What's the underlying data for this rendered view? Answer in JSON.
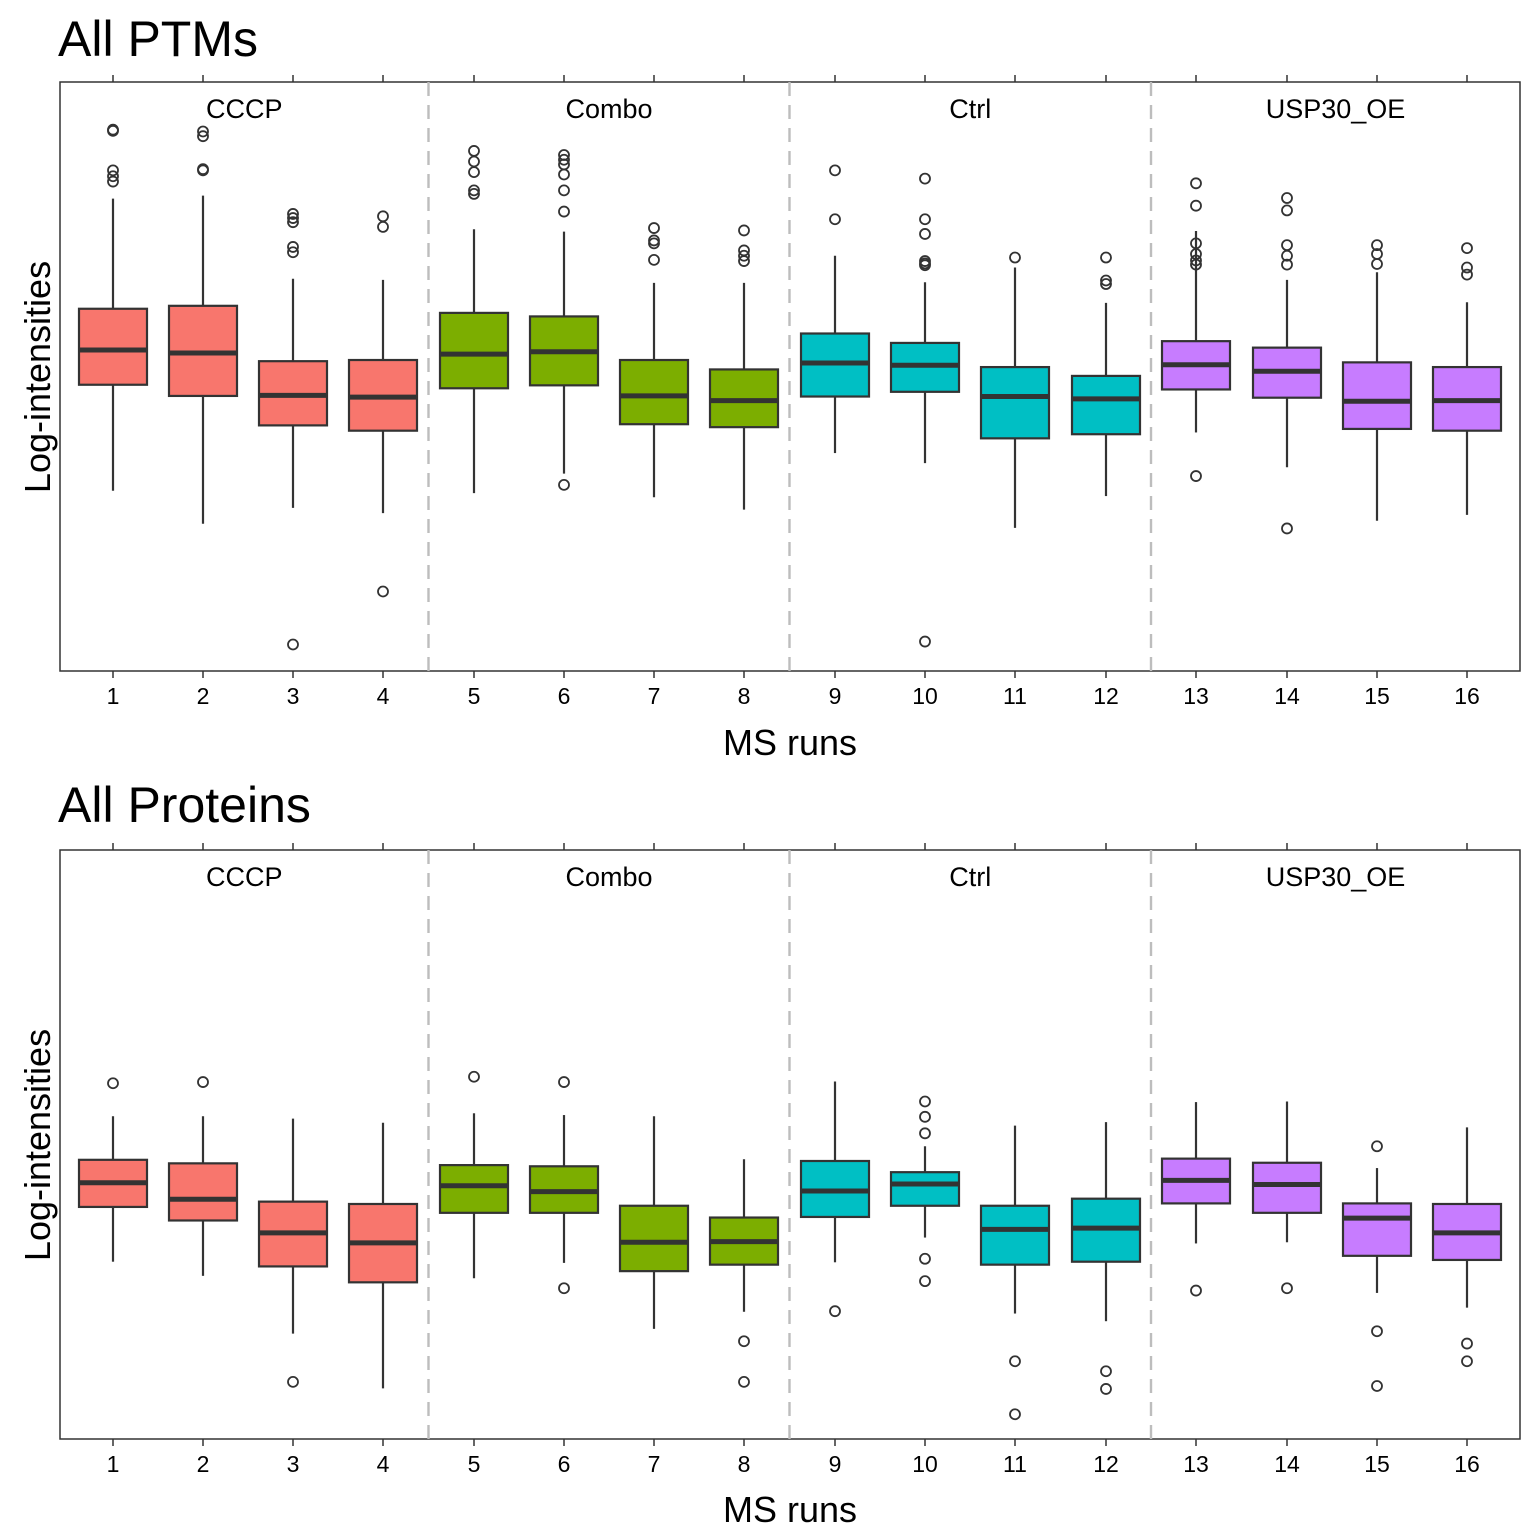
{
  "chart_data": [
    {
      "type": "box",
      "title": "All PTMs",
      "xlabel": "MS runs",
      "ylabel": "Log-intensities",
      "ylim": [
        0,
        100
      ],
      "groups": [
        {
          "name": "CCCP",
          "runs": [
            1,
            2,
            3,
            4
          ],
          "color": "#F8766D"
        },
        {
          "name": "Combo",
          "runs": [
            5,
            6,
            7,
            8
          ],
          "color": "#7CAE00"
        },
        {
          "name": "Ctrl",
          "runs": [
            9,
            10,
            11,
            12
          ],
          "color": "#00BFC4"
        },
        {
          "name": "USP30_OE",
          "runs": [
            13,
            14,
            15,
            16
          ],
          "color": "#C77CFF"
        }
      ],
      "boxes": [
        {
          "run": "1",
          "lower_whisker": 30.6,
          "q1": 48.6,
          "median": 54.5,
          "q3": 61.5,
          "upper_whisker": 80.2,
          "outliers": [
            83.1,
            84.0,
            85.0,
            91.7,
            91.9
          ]
        },
        {
          "run": "2",
          "lower_whisker": 25.0,
          "q1": 46.7,
          "median": 54.0,
          "q3": 62.0,
          "upper_whisker": 80.7,
          "outliers": [
            85.0,
            85.2,
            90.8,
            91.6
          ]
        },
        {
          "run": "3",
          "lower_whisker": 27.7,
          "q1": 41.7,
          "median": 46.8,
          "q3": 52.6,
          "upper_whisker": 66.6,
          "outliers": [
            4.5,
            71.1,
            72.0,
            76.2,
            76.9,
            77.6
          ]
        },
        {
          "run": "4",
          "lower_whisker": 26.8,
          "q1": 40.8,
          "median": 46.5,
          "q3": 52.8,
          "upper_whisker": 66.4,
          "outliers": [
            13.5,
            75.4,
            77.2
          ]
        },
        {
          "run": "5",
          "lower_whisker": 30.2,
          "q1": 48.0,
          "median": 53.8,
          "q3": 60.8,
          "upper_whisker": 75.0,
          "outliers": [
            81.0,
            81.6,
            84.7,
            86.5,
            88.3
          ]
        },
        {
          "run": "6",
          "lower_whisker": 33.5,
          "q1": 48.5,
          "median": 54.2,
          "q3": 60.2,
          "upper_whisker": 74.6,
          "outliers": [
            31.6,
            78.0,
            81.6,
            84.3,
            86.0,
            86.8,
            87.6
          ]
        },
        {
          "run": "7",
          "lower_whisker": 29.5,
          "q1": 41.9,
          "median": 46.7,
          "q3": 52.8,
          "upper_whisker": 65.9,
          "outliers": [
            69.8,
            72.6,
            73.1,
            75.2
          ]
        },
        {
          "run": "8",
          "lower_whisker": 27.4,
          "q1": 41.4,
          "median": 45.9,
          "q3": 51.2,
          "upper_whisker": 65.9,
          "outliers": [
            69.6,
            70.5,
            71.4,
            74.8
          ]
        },
        {
          "run": "9",
          "lower_whisker": 37.0,
          "q1": 46.6,
          "median": 52.3,
          "q3": 57.3,
          "upper_whisker": 70.5,
          "outliers": [
            76.7,
            85.0
          ]
        },
        {
          "run": "10",
          "lower_whisker": 35.3,
          "q1": 47.4,
          "median": 51.9,
          "q3": 55.7,
          "upper_whisker": 66.0,
          "outliers": [
            5.0,
            68.9,
            69.2,
            69.6,
            74.2,
            76.7,
            83.6
          ]
        },
        {
          "run": "11",
          "lower_whisker": 24.3,
          "q1": 39.5,
          "median": 46.6,
          "q3": 51.6,
          "upper_whisker": 68.5,
          "outliers": [
            70.2
          ]
        },
        {
          "run": "12",
          "lower_whisker": 29.7,
          "q1": 40.2,
          "median": 46.2,
          "q3": 50.1,
          "upper_whisker": 62.5,
          "outliers": [
            65.7,
            66.3,
            70.2
          ]
        },
        {
          "run": "13",
          "lower_whisker": 40.5,
          "q1": 47.8,
          "median": 52.0,
          "q3": 56.0,
          "upper_whisker": 74.7,
          "outliers": [
            33.1,
            69.0,
            69.7,
            70.8,
            72.6,
            79.0,
            82.8
          ]
        },
        {
          "run": "14",
          "lower_whisker": 34.6,
          "q1": 46.4,
          "median": 50.9,
          "q3": 54.9,
          "upper_whisker": 66.4,
          "outliers": [
            24.2,
            69.0,
            70.5,
            72.3,
            78.2,
            80.3
          ]
        },
        {
          "run": "15",
          "lower_whisker": 25.5,
          "q1": 41.1,
          "median": 45.8,
          "q3": 52.4,
          "upper_whisker": 67.7,
          "outliers": [
            69.1,
            70.8,
            72.3
          ]
        },
        {
          "run": "16",
          "lower_whisker": 26.5,
          "q1": 40.8,
          "median": 45.9,
          "q3": 51.6,
          "upper_whisker": 62.6,
          "outliers": [
            67.3,
            68.5,
            71.8
          ]
        }
      ]
    },
    {
      "type": "box",
      "title": "All Proteins",
      "xlabel": "MS runs",
      "ylabel": "Log-intensities",
      "ylim": [
        0,
        100
      ],
      "groups": [
        {
          "name": "CCCP",
          "runs": [
            1,
            2,
            3,
            4
          ],
          "color": "#F8766D"
        },
        {
          "name": "Combo",
          "runs": [
            5,
            6,
            7,
            8
          ],
          "color": "#7CAE00"
        },
        {
          "name": "Ctrl",
          "runs": [
            9,
            10,
            11,
            12
          ],
          "color": "#00BFC4"
        },
        {
          "name": "USP30_OE",
          "runs": [
            13,
            14,
            15,
            16
          ],
          "color": "#C77CFF"
        }
      ],
      "boxes": [
        {
          "run": "1",
          "lower_whisker": 30.1,
          "q1": 39.4,
          "median": 43.5,
          "q3": 47.4,
          "upper_whisker": 54.8,
          "outliers": [
            60.4
          ]
        },
        {
          "run": "2",
          "lower_whisker": 27.7,
          "q1": 37.1,
          "median": 40.7,
          "q3": 46.8,
          "upper_whisker": 54.8,
          "outliers": [
            60.6
          ]
        },
        {
          "run": "3",
          "lower_whisker": 17.9,
          "q1": 29.3,
          "median": 35.0,
          "q3": 40.3,
          "upper_whisker": 54.4,
          "outliers": [
            9.7
          ]
        },
        {
          "run": "4",
          "lower_whisker": 8.6,
          "q1": 26.6,
          "median": 33.3,
          "q3": 39.9,
          "upper_whisker": 53.7,
          "outliers": []
        },
        {
          "run": "5",
          "lower_whisker": 27.3,
          "q1": 38.4,
          "median": 43.0,
          "q3": 46.5,
          "upper_whisker": 55.3,
          "outliers": [
            61.5
          ]
        },
        {
          "run": "6",
          "lower_whisker": 29.9,
          "q1": 38.4,
          "median": 42.0,
          "q3": 46.3,
          "upper_whisker": 55.0,
          "outliers": [
            25.6,
            60.6
          ]
        },
        {
          "run": "7",
          "lower_whisker": 18.7,
          "q1": 28.5,
          "median": 33.4,
          "q3": 39.6,
          "upper_whisker": 54.8,
          "outliers": []
        },
        {
          "run": "8",
          "lower_whisker": 21.6,
          "q1": 29.6,
          "median": 33.5,
          "q3": 37.6,
          "upper_whisker": 47.5,
          "outliers": [
            9.7,
            16.6
          ]
        },
        {
          "run": "9",
          "lower_whisker": 30.0,
          "q1": 37.7,
          "median": 42.1,
          "q3": 47.2,
          "upper_whisker": 60.7,
          "outliers": [
            21.7
          ]
        },
        {
          "run": "10",
          "lower_whisker": 34.2,
          "q1": 39.6,
          "median": 43.3,
          "q3": 45.3,
          "upper_whisker": 49.7,
          "outliers": [
            26.8,
            30.6,
            51.9,
            54.7,
            57.3
          ]
        },
        {
          "run": "11",
          "lower_whisker": 21.3,
          "q1": 29.6,
          "median": 35.6,
          "q3": 39.6,
          "upper_whisker": 53.2,
          "outliers": [
            4.2,
            13.2
          ]
        },
        {
          "run": "12",
          "lower_whisker": 20.0,
          "q1": 30.1,
          "median": 35.8,
          "q3": 40.8,
          "upper_whisker": 53.8,
          "outliers": [
            8.5,
            11.5
          ]
        },
        {
          "run": "13",
          "lower_whisker": 33.2,
          "q1": 40.0,
          "median": 43.9,
          "q3": 47.6,
          "upper_whisker": 57.2,
          "outliers": [
            25.2
          ]
        },
        {
          "run": "14",
          "lower_whisker": 33.4,
          "q1": 38.4,
          "median": 43.2,
          "q3": 46.9,
          "upper_whisker": 57.3,
          "outliers": [
            25.6
          ]
        },
        {
          "run": "15",
          "lower_whisker": 24.8,
          "q1": 31.1,
          "median": 37.5,
          "q3": 40.0,
          "upper_whisker": 46.0,
          "outliers": [
            9.0,
            18.3,
            49.7
          ]
        },
        {
          "run": "16",
          "lower_whisker": 22.3,
          "q1": 30.4,
          "median": 35.0,
          "q3": 39.9,
          "upper_whisker": 52.9,
          "outliers": [
            13.2,
            16.2
          ]
        }
      ]
    }
  ]
}
